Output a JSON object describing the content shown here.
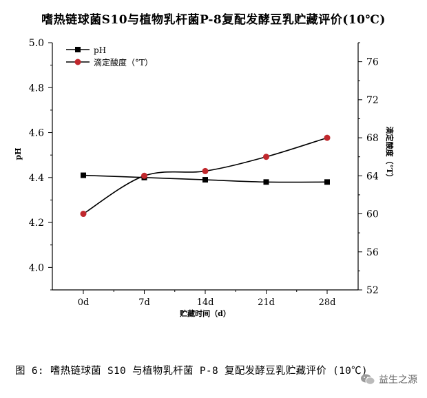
{
  "chart_data": {
    "type": "line",
    "title": "嗜热链球菌S10与植物乳杆菌P-8复配发酵豆乳贮藏评价(10℃)",
    "categories": [
      "0d",
      "7d",
      "14d",
      "21d",
      "28d"
    ],
    "xlabel": "贮藏时间（d）",
    "ylabel_left": "pH",
    "ylabel_right": "滴定酸度（°T）",
    "ylim_left": [
      3.9,
      5.0
    ],
    "yticks_left": [
      "4.0",
      "4.2",
      "4.4",
      "4.6",
      "4.8",
      "5.0"
    ],
    "ylim_right": [
      52,
      78
    ],
    "yticks_right": [
      "52",
      "56",
      "60",
      "64",
      "68",
      "72",
      "76"
    ],
    "series": [
      {
        "name": "pH",
        "axis": "left",
        "marker": "square",
        "color": "#000000",
        "values": [
          4.41,
          4.4,
          4.39,
          4.38,
          4.38
        ]
      },
      {
        "name": "滴定酸度（°T）",
        "axis": "right",
        "marker": "circle",
        "color": "#c0282d",
        "values": [
          60.0,
          64.0,
          64.5,
          66.0,
          68.0
        ]
      }
    ],
    "legend_position": "top-left",
    "grid": false
  },
  "caption": "图 6: 嗜热链球菌 S10 与植物乳杆菌 P-8 复配发酵豆乳贮藏评价 (10℃)",
  "watermark": "益生之源"
}
